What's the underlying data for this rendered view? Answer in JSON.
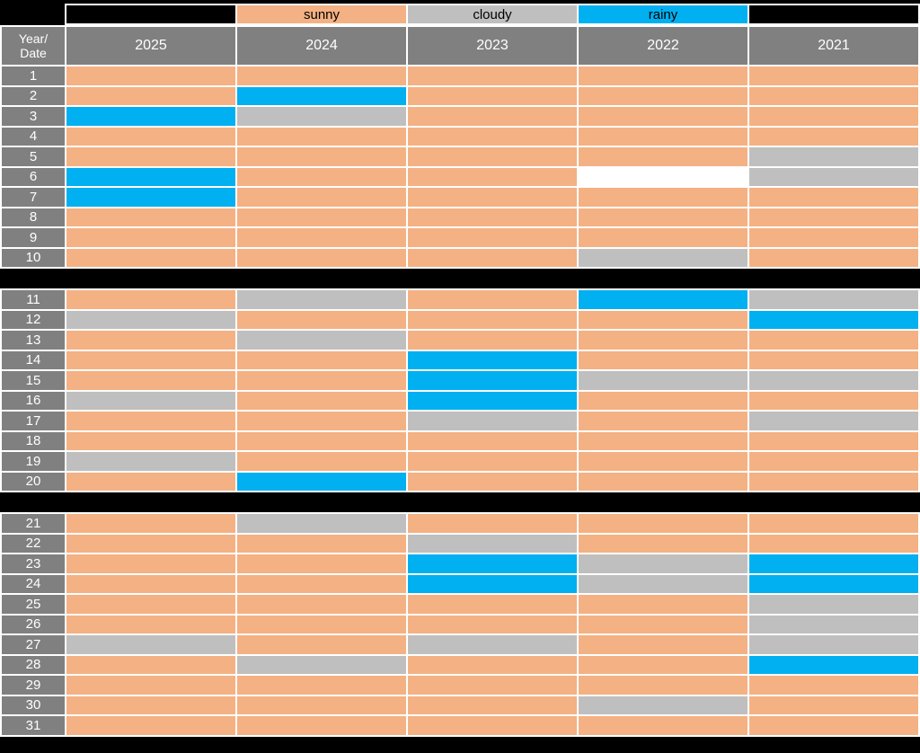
{
  "legend": {
    "items": [
      {
        "label": "sunny",
        "color": "#F4B183"
      },
      {
        "label": "cloudy",
        "color": "#BFBFBF"
      },
      {
        "label": "rainy",
        "color": "#00B0F0"
      }
    ]
  },
  "header": {
    "corner_line1": "Year/",
    "corner_line2": "Date",
    "years": [
      "2025",
      "2024",
      "2023",
      "2022",
      "2021"
    ]
  },
  "colors": {
    "sunny": "#F4B183",
    "cloudy": "#BFBFBF",
    "rainy": "#00B0F0",
    "empty": "#FFFFFF",
    "header_bg": "#808080",
    "background": "#000000",
    "grid": "#FFFFFF"
  },
  "chart_data": {
    "type": "table",
    "title": "",
    "row_label_header": "Year/Date",
    "columns": [
      "2025",
      "2024",
      "2023",
      "2022",
      "2021"
    ],
    "legend": [
      "sunny",
      "cloudy",
      "rainy"
    ],
    "row_groups": [
      [
        "1",
        "10"
      ],
      [
        "11",
        "20"
      ],
      [
        "21",
        "31"
      ]
    ],
    "rows": [
      {
        "date": "1",
        "values": [
          "sunny",
          "sunny",
          "sunny",
          "sunny",
          "sunny"
        ]
      },
      {
        "date": "2",
        "values": [
          "sunny",
          "rainy",
          "sunny",
          "sunny",
          "sunny"
        ]
      },
      {
        "date": "3",
        "values": [
          "rainy",
          "cloudy",
          "sunny",
          "sunny",
          "sunny"
        ]
      },
      {
        "date": "4",
        "values": [
          "sunny",
          "sunny",
          "sunny",
          "sunny",
          "sunny"
        ]
      },
      {
        "date": "5",
        "values": [
          "sunny",
          "sunny",
          "sunny",
          "sunny",
          "cloudy"
        ]
      },
      {
        "date": "6",
        "values": [
          "rainy",
          "sunny",
          "sunny",
          "",
          "cloudy"
        ]
      },
      {
        "date": "7",
        "values": [
          "rainy",
          "sunny",
          "sunny",
          "sunny",
          "sunny"
        ]
      },
      {
        "date": "8",
        "values": [
          "sunny",
          "sunny",
          "sunny",
          "sunny",
          "sunny"
        ]
      },
      {
        "date": "9",
        "values": [
          "sunny",
          "sunny",
          "sunny",
          "sunny",
          "sunny"
        ]
      },
      {
        "date": "10",
        "values": [
          "sunny",
          "sunny",
          "sunny",
          "cloudy",
          "sunny"
        ]
      },
      {
        "date": "11",
        "values": [
          "sunny",
          "cloudy",
          "sunny",
          "rainy",
          "cloudy"
        ]
      },
      {
        "date": "12",
        "values": [
          "cloudy",
          "sunny",
          "sunny",
          "sunny",
          "rainy"
        ]
      },
      {
        "date": "13",
        "values": [
          "sunny",
          "cloudy",
          "sunny",
          "sunny",
          "sunny"
        ]
      },
      {
        "date": "14",
        "values": [
          "sunny",
          "sunny",
          "rainy",
          "sunny",
          "sunny"
        ]
      },
      {
        "date": "15",
        "values": [
          "sunny",
          "sunny",
          "rainy",
          "cloudy",
          "cloudy"
        ]
      },
      {
        "date": "16",
        "values": [
          "cloudy",
          "sunny",
          "rainy",
          "sunny",
          "sunny"
        ]
      },
      {
        "date": "17",
        "values": [
          "sunny",
          "sunny",
          "cloudy",
          "sunny",
          "cloudy"
        ]
      },
      {
        "date": "18",
        "values": [
          "sunny",
          "sunny",
          "sunny",
          "sunny",
          "sunny"
        ]
      },
      {
        "date": "19",
        "values": [
          "cloudy",
          "sunny",
          "sunny",
          "sunny",
          "sunny"
        ]
      },
      {
        "date": "20",
        "values": [
          "sunny",
          "rainy",
          "sunny",
          "sunny",
          "sunny"
        ]
      },
      {
        "date": "21",
        "values": [
          "sunny",
          "cloudy",
          "sunny",
          "sunny",
          "sunny"
        ]
      },
      {
        "date": "22",
        "values": [
          "sunny",
          "sunny",
          "cloudy",
          "sunny",
          "sunny"
        ]
      },
      {
        "date": "23",
        "values": [
          "sunny",
          "sunny",
          "rainy",
          "cloudy",
          "rainy"
        ]
      },
      {
        "date": "24",
        "values": [
          "sunny",
          "sunny",
          "rainy",
          "cloudy",
          "rainy"
        ]
      },
      {
        "date": "25",
        "values": [
          "sunny",
          "sunny",
          "sunny",
          "sunny",
          "cloudy"
        ]
      },
      {
        "date": "26",
        "values": [
          "sunny",
          "sunny",
          "sunny",
          "sunny",
          "cloudy"
        ]
      },
      {
        "date": "27",
        "values": [
          "cloudy",
          "sunny",
          "cloudy",
          "sunny",
          "cloudy"
        ]
      },
      {
        "date": "28",
        "values": [
          "sunny",
          "cloudy",
          "sunny",
          "sunny",
          "rainy"
        ]
      },
      {
        "date": "29",
        "values": [
          "sunny",
          "sunny",
          "sunny",
          "sunny",
          "sunny"
        ]
      },
      {
        "date": "30",
        "values": [
          "sunny",
          "sunny",
          "sunny",
          "cloudy",
          "sunny"
        ]
      },
      {
        "date": "31",
        "values": [
          "sunny",
          "sunny",
          "sunny",
          "sunny",
          "sunny"
        ]
      }
    ]
  }
}
